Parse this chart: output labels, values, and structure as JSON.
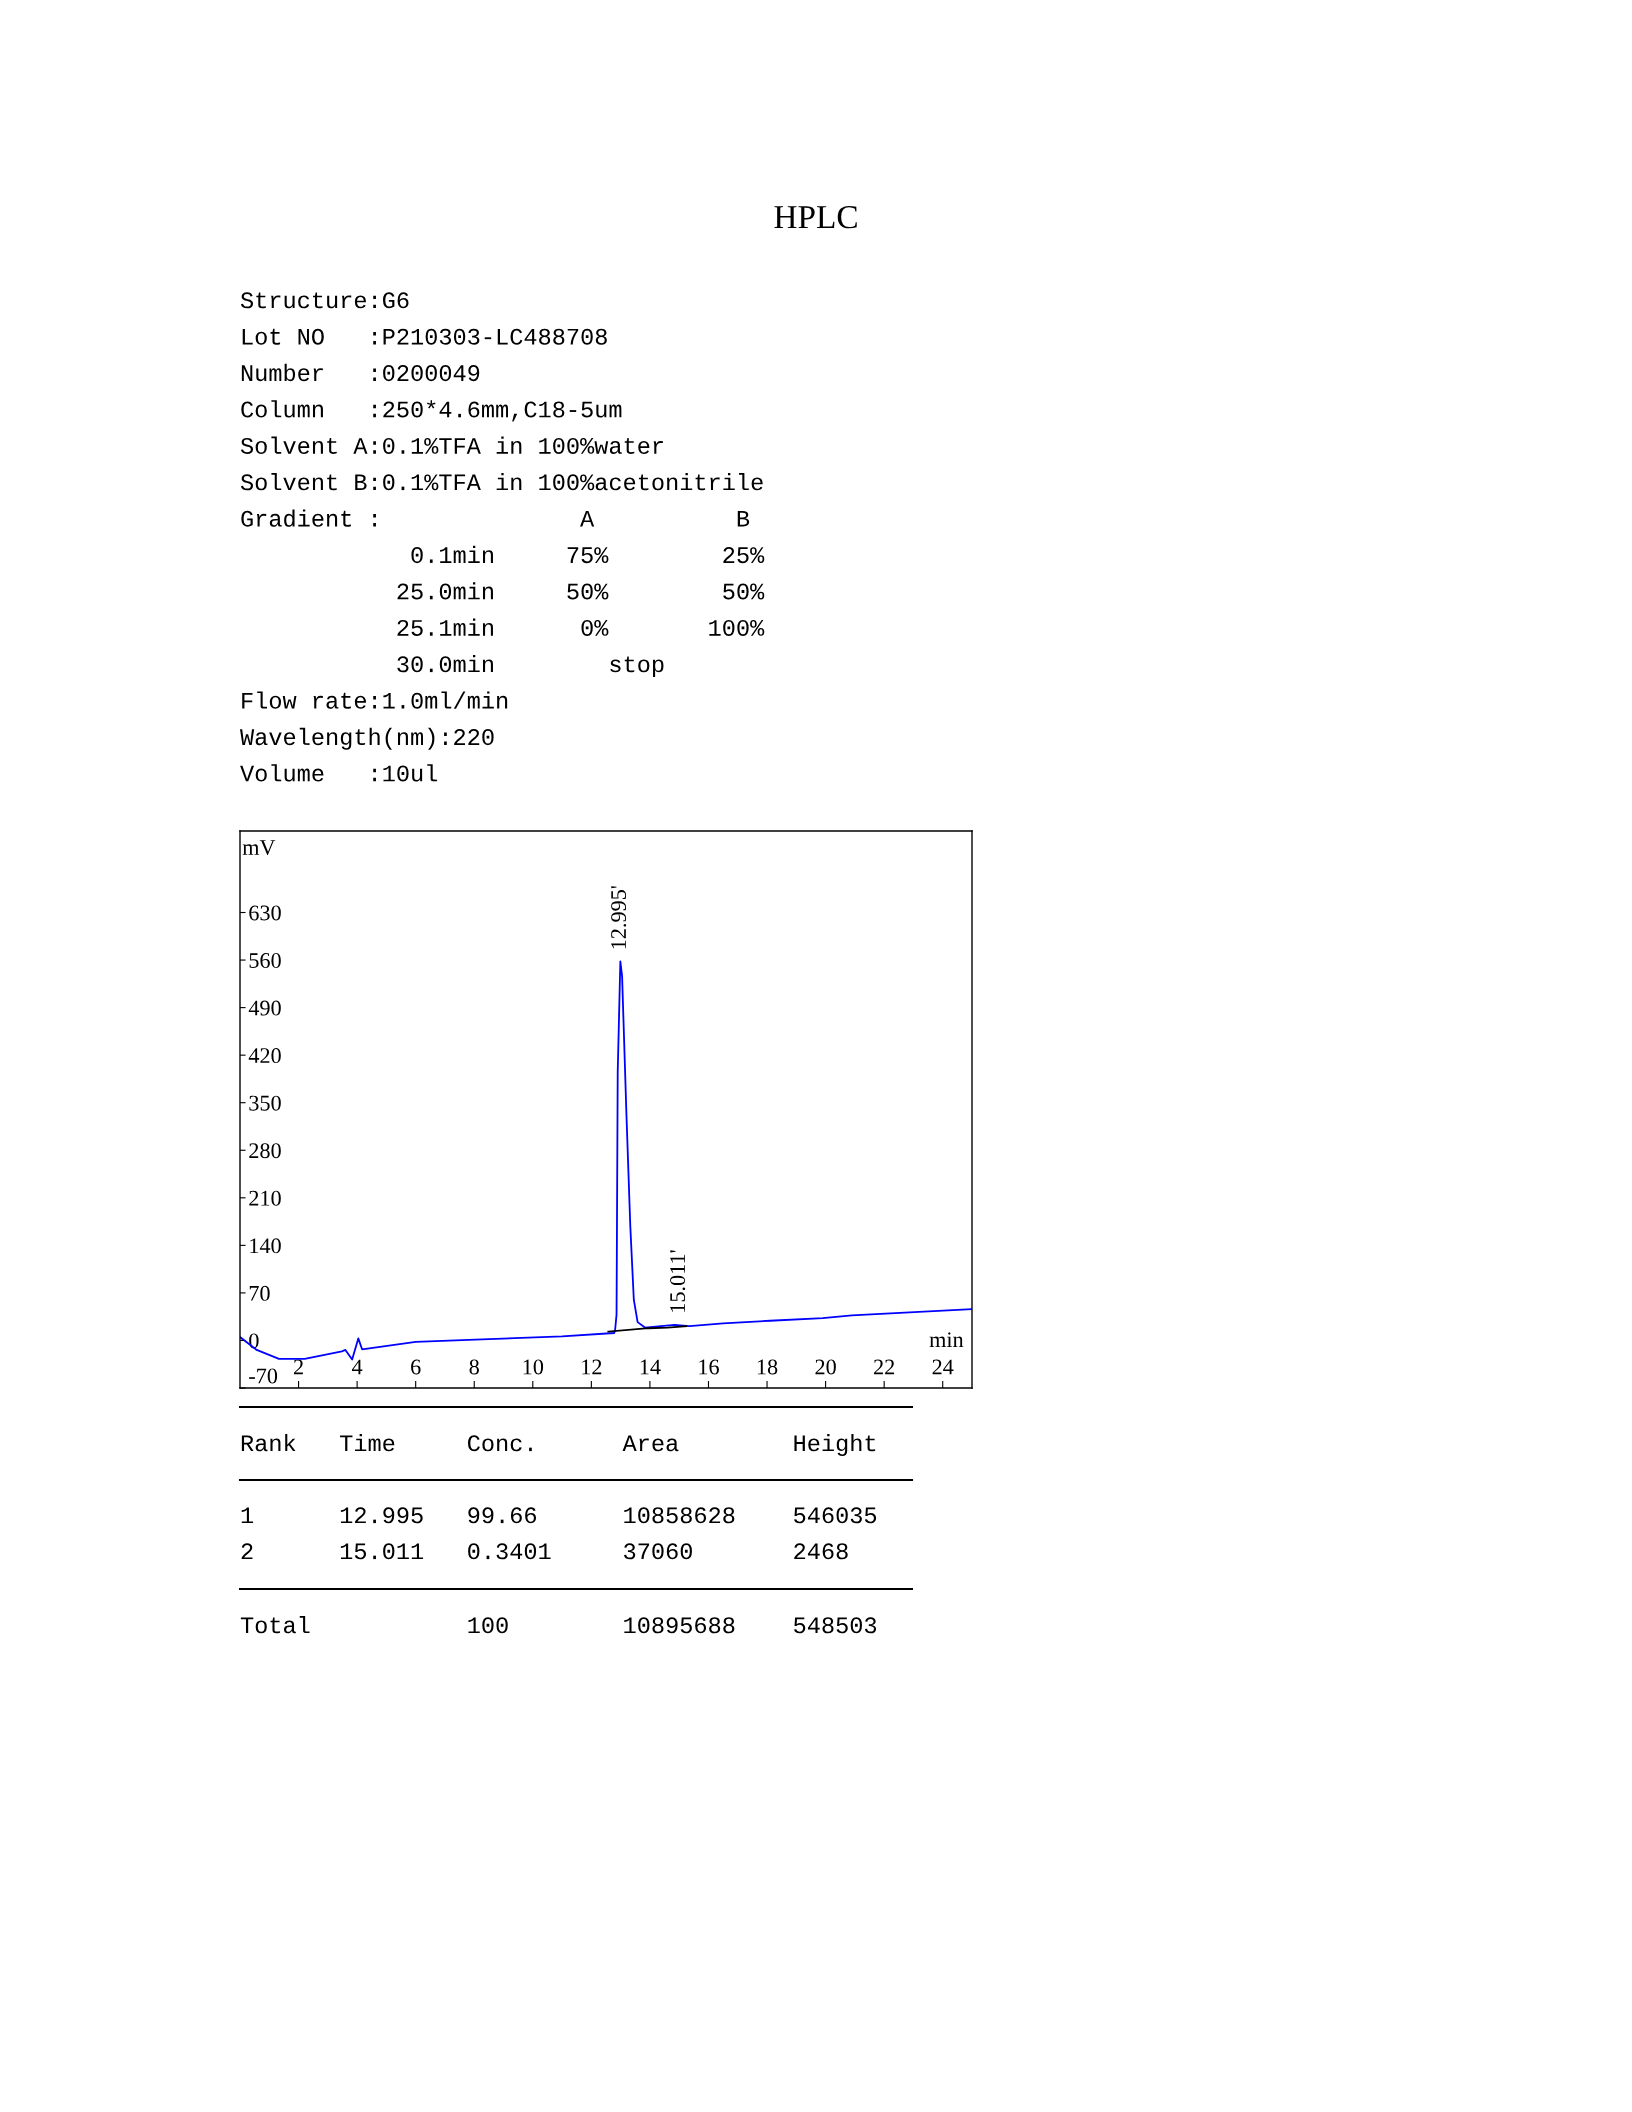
{
  "chart_data": {
    "type": "line",
    "title": "HPLC",
    "xlabel": "min",
    "ylabel": "mV",
    "xlim": [
      0,
      25
    ],
    "xticks": [
      2,
      4,
      6,
      8,
      10,
      12,
      14,
      16,
      18,
      20,
      22,
      24
    ],
    "ylim": [
      -70,
      750
    ],
    "yticks": [
      -70,
      0,
      70,
      140,
      210,
      280,
      350,
      420,
      490,
      560,
      630
    ],
    "grid": false,
    "marker": "none",
    "line_style": "solid",
    "series": [
      {
        "color": "#0000ff",
        "x": [
          0.0,
          0.57,
          1.33,
          2.21,
          3.48,
          3.6,
          3.83,
          4.04,
          4.17,
          6.0,
          8.5,
          11.0,
          12.78,
          12.81,
          12.86,
          12.9,
          12.99,
          13.05,
          13.2,
          13.33,
          13.45,
          13.58,
          13.83,
          14.84,
          15.35,
          16.5,
          18.1,
          19.9,
          20.9,
          22.7,
          25.0
        ],
        "values": [
          5,
          -14,
          -27,
          -27,
          -16,
          -14,
          -28,
          3,
          -13,
          -2,
          2,
          6,
          11,
          15,
          38,
          395,
          558,
          536,
          330,
          168,
          60,
          27,
          19,
          23,
          21,
          25,
          29,
          33,
          37,
          41,
          46
        ]
      },
      {
        "color": "#000000",
        "x": [
          12.58,
          13.95,
          14.6,
          15.24
        ],
        "values": [
          13,
          18,
          19,
          21
        ]
      }
    ],
    "annotations": [
      {
        "text": "12.995'",
        "x": 12.995,
        "y": 558
      },
      {
        "text": "15.011'",
        "x": 15.011,
        "y": 23
      },
      "Structure:G6",
      "Lot NO   :P210303-LC488708",
      "Number   :0200049",
      "Column   :250*4.6mm,C18-5um",
      "Solvent A:0.1%TFA in 100%water",
      "Solvent B:0.1%TFA in 100%acetonitrile",
      "Gradient :              A          B",
      "            0.1min     75%        25%",
      "           25.0min     50%        50%",
      "           25.1min      0%       100%",
      "           30.0min        stop",
      "Flow rate:1.0ml/min",
      "Wavelength(nm):220",
      "Volume   :10ul",
      "Rank   Time     Conc.      Area        Height",
      "1      12.995   99.66      10858628    546035",
      "2      15.011   0.3401     37060       2468",
      "Total           100        10895688    548503"
    ]
  }
}
